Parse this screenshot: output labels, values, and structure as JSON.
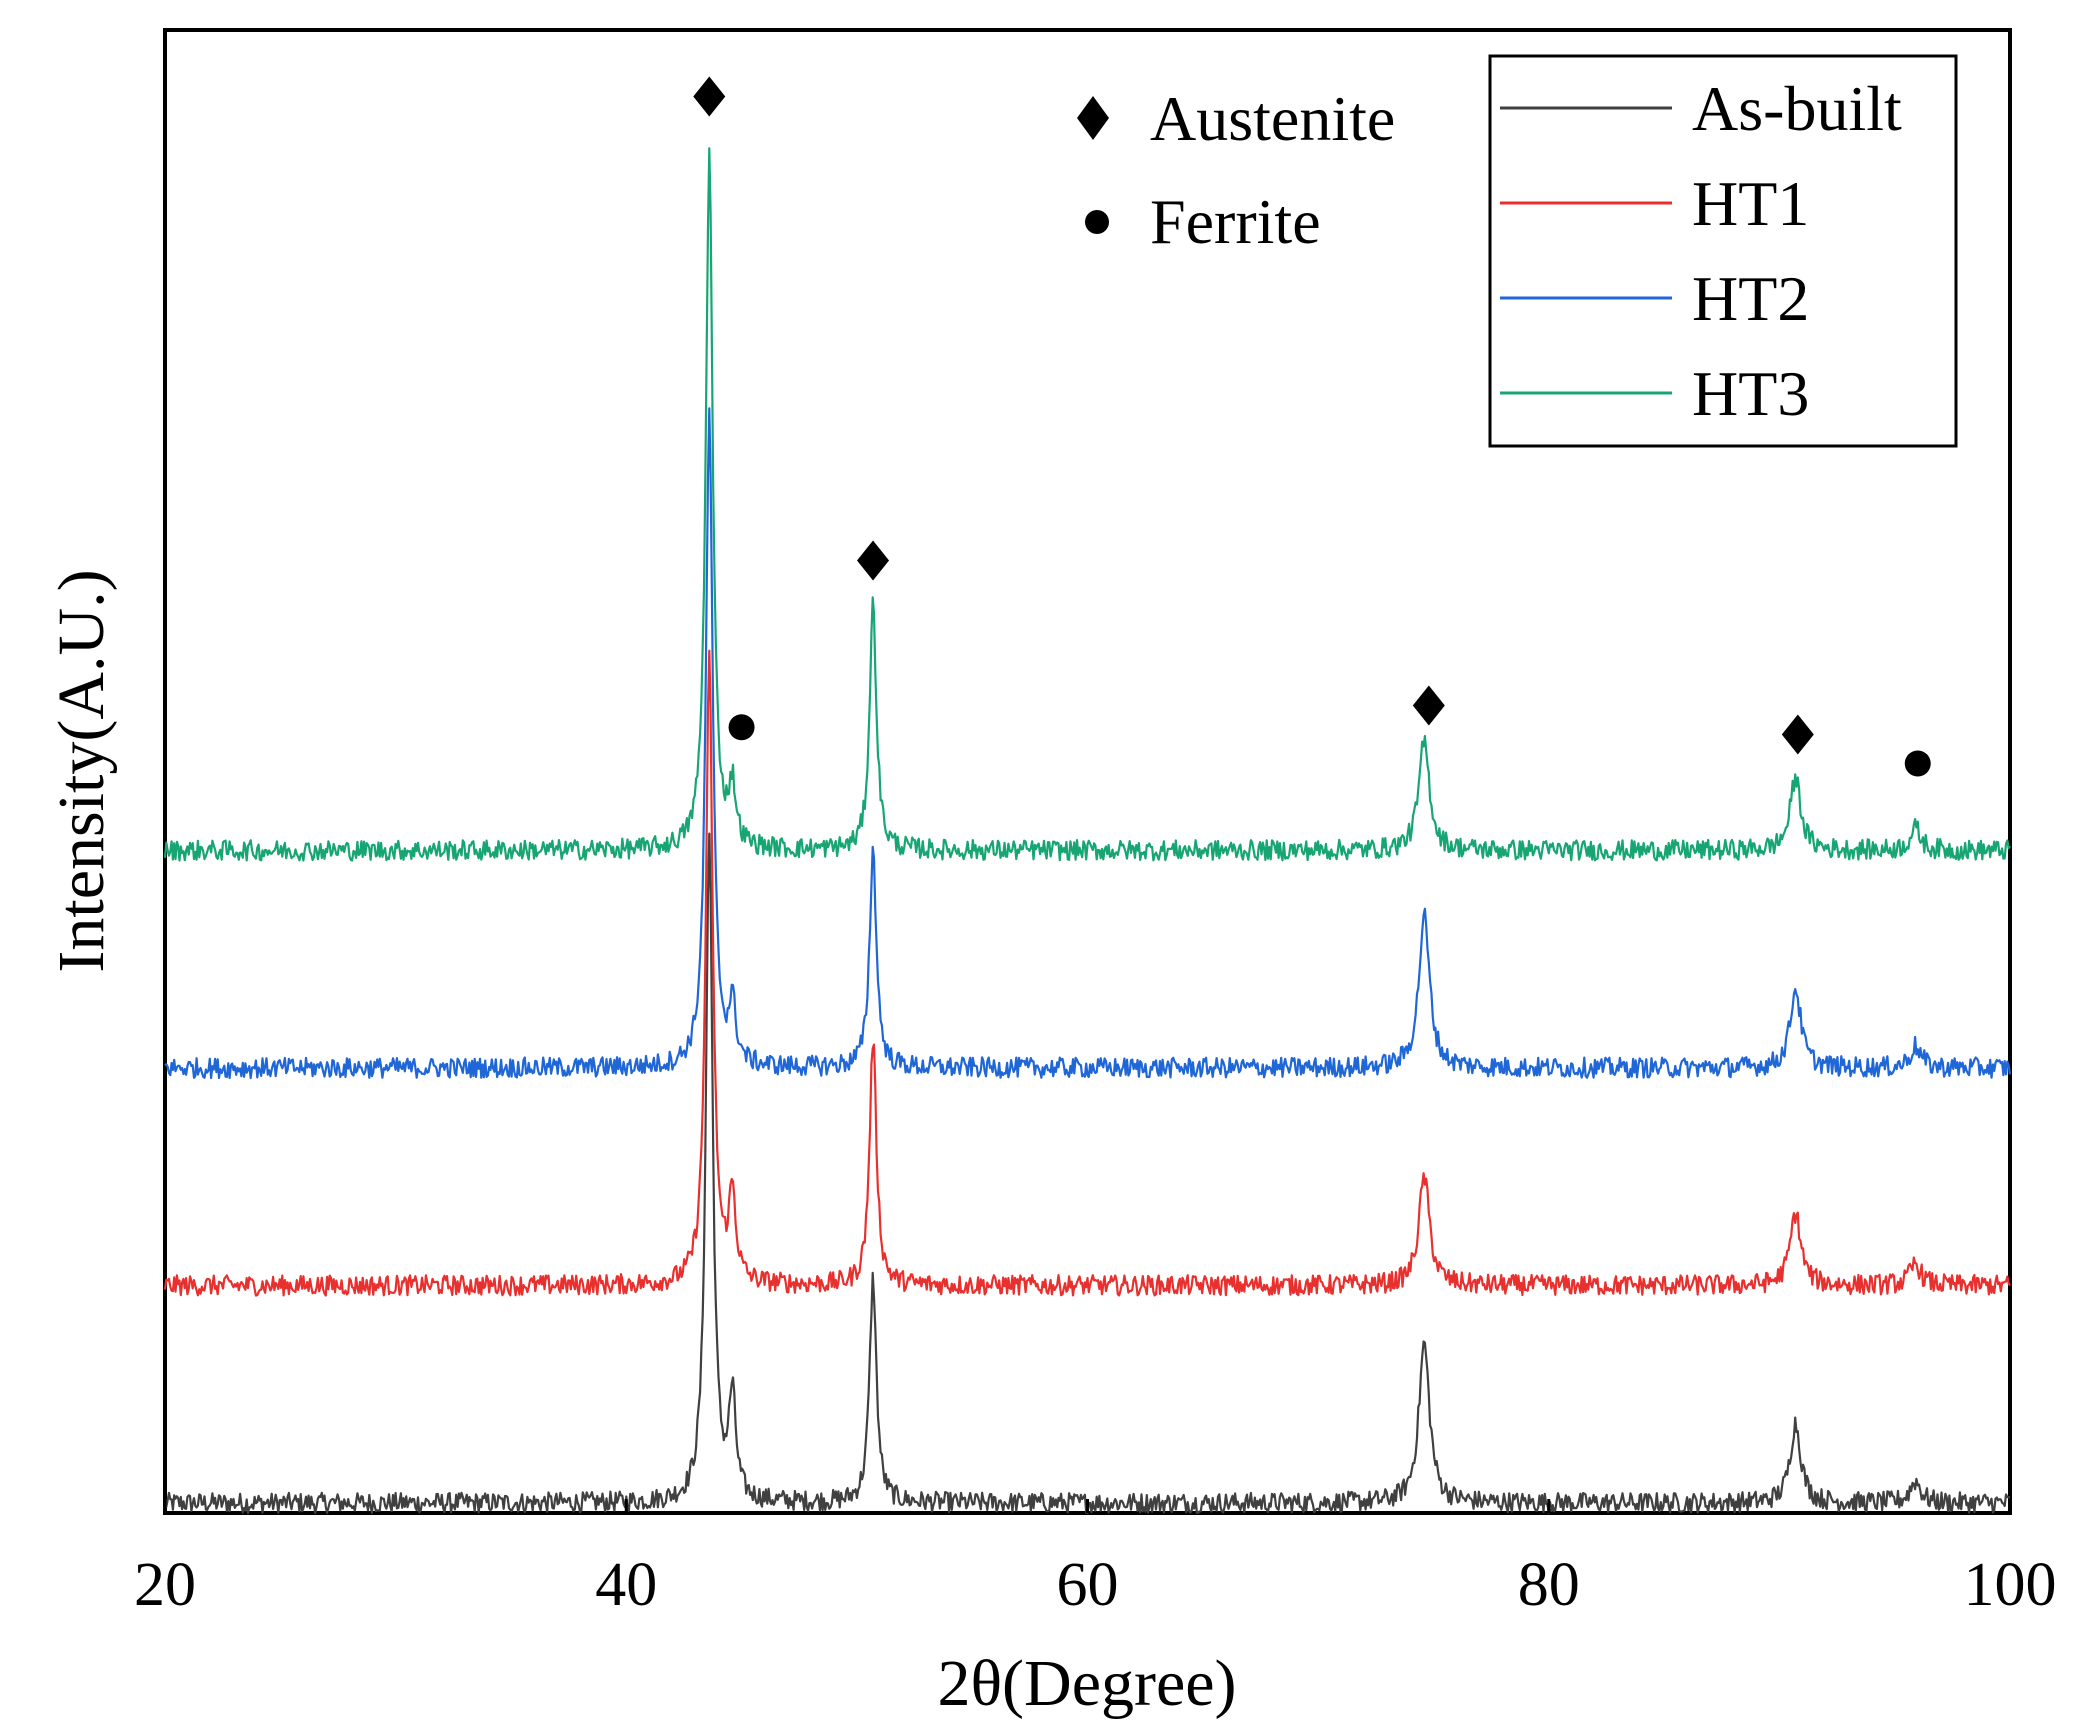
{
  "chart_data": {
    "type": "line",
    "title": "",
    "xlabel": "2θ(Degree)",
    "ylabel": "Intensity(A.U.)",
    "xlim": [
      20,
      100
    ],
    "xticks": [
      "20",
      "40",
      "60",
      "80",
      "100"
    ],
    "yticks": [],
    "grid": false,
    "legend_position": "top-right",
    "series": [
      {
        "name": "As-built",
        "color": "#404040",
        "baseline": 0.0,
        "peaks": [
          {
            "x": 43.6,
            "height": 0.46
          },
          {
            "x": 44.6,
            "height": 0.07
          },
          {
            "x": 50.7,
            "height": 0.155
          },
          {
            "x": 74.6,
            "height": 0.11
          },
          {
            "x": 90.7,
            "height": 0.055
          },
          {
            "x": 95.9,
            "height": 0.015
          }
        ]
      },
      {
        "name": "HT1",
        "color": "#e8312f",
        "baseline": 0.15,
        "peaks": [
          {
            "x": 43.6,
            "height": 0.43
          },
          {
            "x": 44.6,
            "height": 0.06
          },
          {
            "x": 50.7,
            "height": 0.17
          },
          {
            "x": 74.6,
            "height": 0.075
          },
          {
            "x": 90.7,
            "height": 0.05
          },
          {
            "x": 95.9,
            "height": 0.015
          }
        ]
      },
      {
        "name": "HT2",
        "color": "#1f66d6",
        "baseline": 0.3,
        "peaks": [
          {
            "x": 43.6,
            "height": 0.45
          },
          {
            "x": 44.6,
            "height": 0.04
          },
          {
            "x": 50.7,
            "height": 0.15
          },
          {
            "x": 74.6,
            "height": 0.105
          },
          {
            "x": 90.7,
            "height": 0.055
          },
          {
            "x": 95.9,
            "height": 0.015
          }
        ]
      },
      {
        "name": "HT3",
        "color": "#17a673",
        "baseline": 0.45,
        "peaks": [
          {
            "x": 43.6,
            "height": 0.48
          },
          {
            "x": 44.6,
            "height": 0.04
          },
          {
            "x": 50.7,
            "height": 0.17
          },
          {
            "x": 74.6,
            "height": 0.075
          },
          {
            "x": 90.7,
            "height": 0.05
          },
          {
            "x": 95.9,
            "height": 0.015
          }
        ]
      }
    ],
    "phase_legend": [
      {
        "symbol": "diamond",
        "label": "Austenite"
      },
      {
        "symbol": "circle",
        "label": "Ferrite"
      }
    ],
    "phase_markers": [
      {
        "phase": "Austenite",
        "symbol": "diamond",
        "x": 43.6,
        "y": 0.97
      },
      {
        "phase": "Austenite",
        "symbol": "diamond",
        "x": 50.7,
        "y": 0.65
      },
      {
        "phase": "Ferrite",
        "symbol": "circle",
        "x": 45.0,
        "y": 0.535
      },
      {
        "phase": "Austenite",
        "symbol": "diamond",
        "x": 74.8,
        "y": 0.55
      },
      {
        "phase": "Austenite",
        "symbol": "diamond",
        "x": 90.8,
        "y": 0.53
      },
      {
        "phase": "Ferrite",
        "symbol": "circle",
        "x": 96.0,
        "y": 0.51
      }
    ]
  }
}
